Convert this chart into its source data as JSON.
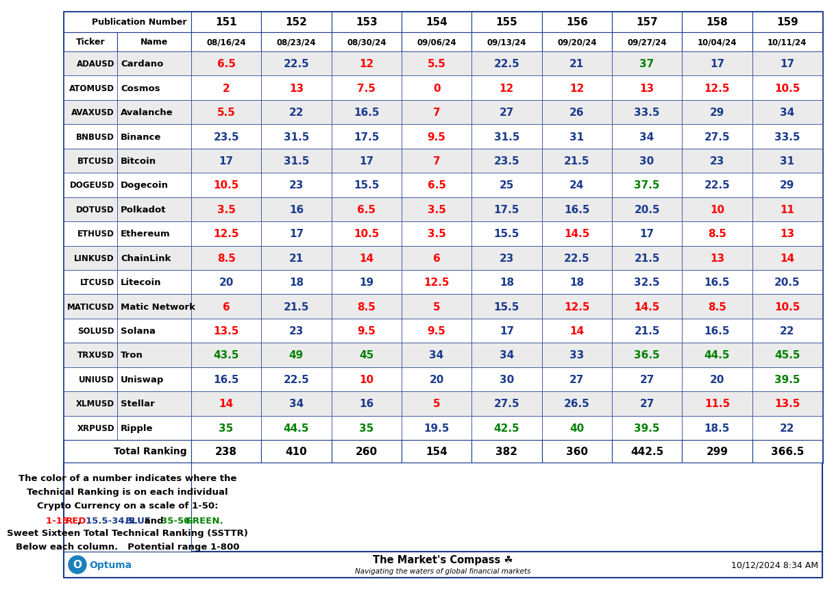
{
  "pub_numbers": [
    "151",
    "152",
    "153",
    "154",
    "155",
    "156",
    "157",
    "158",
    "159"
  ],
  "dates": [
    "08/16/24",
    "08/23/24",
    "08/30/24",
    "09/06/24",
    "09/13/24",
    "09/20/24",
    "09/27/24",
    "10/04/24",
    "10/11/24"
  ],
  "tickers": [
    "ADAUSD",
    "ATOMUSD",
    "AVAXUSD",
    "BNBUSD",
    "BTCUSD",
    "DOGEUSD",
    "DOTUSD",
    "ETHUSD",
    "LINKUSD",
    "LTCUSD",
    "MATICUSD",
    "SOLUSD",
    "TRXUSD",
    "UNIUSD",
    "XLMUSD",
    "XRPUSD"
  ],
  "names": [
    "Cardano",
    "Cosmos",
    "Avalanche",
    "Binance",
    "Bitcoin",
    "Dogecoin",
    "Polkadot",
    "Ethereum",
    "ChainLink",
    "Litecoin",
    "Matic Network",
    "Solana",
    "Tron",
    "Uniswap",
    "Stellar",
    "Ripple"
  ],
  "values": [
    [
      6.5,
      22.5,
      12,
      5.5,
      22.5,
      21,
      37,
      17,
      17
    ],
    [
      2,
      13,
      7.5,
      0,
      12,
      12,
      13,
      12.5,
      10.5
    ],
    [
      5.5,
      22,
      16.5,
      7,
      27,
      26,
      33.5,
      29,
      34
    ],
    [
      23.5,
      31.5,
      17.5,
      9.5,
      31.5,
      31,
      34,
      27.5,
      33.5
    ],
    [
      17,
      31.5,
      17,
      7,
      23.5,
      21.5,
      30,
      23,
      31
    ],
    [
      10.5,
      23,
      15.5,
      6.5,
      25,
      24,
      37.5,
      22.5,
      29
    ],
    [
      3.5,
      16,
      6.5,
      3.5,
      17.5,
      16.5,
      20.5,
      10,
      11
    ],
    [
      12.5,
      17,
      10.5,
      3.5,
      15.5,
      14.5,
      17,
      8.5,
      13
    ],
    [
      8.5,
      21,
      14,
      6,
      23,
      22.5,
      21.5,
      13,
      14
    ],
    [
      20,
      18,
      19,
      12.5,
      18,
      18,
      32.5,
      16.5,
      20.5
    ],
    [
      6,
      21.5,
      8.5,
      5,
      15.5,
      12.5,
      14.5,
      8.5,
      10.5
    ],
    [
      13.5,
      23,
      9.5,
      9.5,
      17,
      14,
      21.5,
      16.5,
      22
    ],
    [
      43.5,
      49,
      45,
      34,
      34,
      33,
      36.5,
      44.5,
      45.5
    ],
    [
      16.5,
      22.5,
      10,
      20,
      30,
      27,
      27,
      20,
      39.5
    ],
    [
      14,
      34,
      16,
      5,
      27.5,
      26.5,
      27,
      11.5,
      13.5
    ],
    [
      35,
      44.5,
      35,
      19.5,
      42.5,
      40,
      39.5,
      18.5,
      22
    ]
  ],
  "totals": [
    238,
    410,
    260,
    154,
    382,
    360,
    442.5,
    299,
    366.5
  ],
  "red": "#FF0000",
  "blue": "#1a3a8c",
  "green": "#008000",
  "border_color": "#1a3a8c",
  "date_text": "10/12/2024 8:34 AM",
  "legend_line1": "The color of a number indicates where the",
  "legend_line2": "Technical Ranking is on each individual",
  "legend_line3": "Crypto Currency on a scale of 1-50:",
  "legend_line5": "Sweet Sixteen Total Technical Ranking (SSTTR)",
  "legend_line6": "Below each column.   Potential range 1-800",
  "row_bg_even": "#ebebeb",
  "row_bg_odd": "#ffffff"
}
